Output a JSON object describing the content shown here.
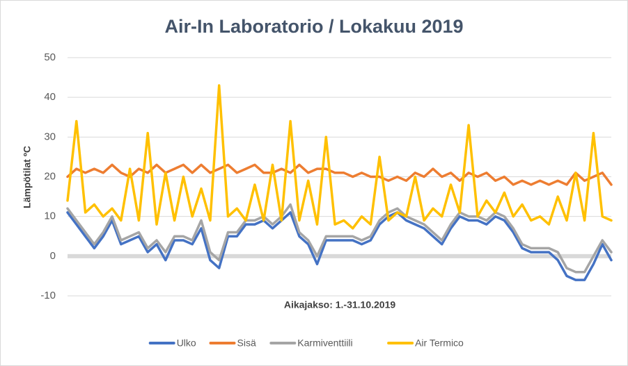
{
  "chart_data": {
    "type": "line",
    "title": "Air-In Laboratorio / Lokakuu 2019",
    "x_label": "Aikajakso: 1.-31.10.2019",
    "y_label": "Lämpötilat ºC",
    "ylim": [
      -10,
      50
    ],
    "yticks": [
      -10,
      0,
      10,
      20,
      30,
      40,
      50
    ],
    "grid": true,
    "legend": "bottom",
    "series": [
      {
        "name": "Ulko",
        "color": "#4472c4",
        "values": [
          11,
          8,
          5,
          2,
          5,
          9,
          3,
          4,
          5,
          1,
          3,
          -1,
          4,
          4,
          3,
          7,
          -1,
          -3,
          5,
          5,
          8,
          8,
          9,
          7,
          9,
          11,
          5,
          3,
          -2,
          4,
          4,
          4,
          4,
          3,
          4,
          8,
          10,
          11,
          9,
          8,
          7,
          5,
          3,
          7,
          10,
          9,
          9,
          8,
          10,
          9,
          6,
          2,
          1,
          1,
          1,
          -1,
          -5,
          -6,
          -6,
          -2,
          3,
          -1
        ]
      },
      {
        "name": "Sisä",
        "color": "#ed7d31",
        "values": [
          20,
          22,
          21,
          22,
          21,
          23,
          21,
          20,
          22,
          21,
          23,
          21,
          22,
          23,
          21,
          23,
          21,
          22,
          23,
          21,
          22,
          23,
          21,
          21,
          22,
          21,
          23,
          21,
          22,
          22,
          21,
          21,
          20,
          21,
          20,
          20,
          19,
          20,
          19,
          21,
          20,
          22,
          20,
          21,
          19,
          21,
          20,
          21,
          19,
          20,
          18,
          19,
          18,
          19,
          18,
          19,
          18,
          21,
          19,
          20,
          21,
          18
        ]
      },
      {
        "name": "Karmiventtiili",
        "color": "#a5a5a5",
        "values": [
          12,
          9,
          6,
          3,
          6,
          10,
          4,
          5,
          6,
          2,
          4,
          1,
          5,
          5,
          4,
          9,
          1,
          -1,
          6,
          6,
          9,
          9,
          10,
          8,
          10,
          13,
          6,
          4,
          0,
          5,
          5,
          5,
          5,
          4,
          5,
          9,
          11,
          12,
          10,
          9,
          8,
          6,
          4,
          8,
          11,
          10,
          10,
          9,
          11,
          10,
          7,
          3,
          2,
          2,
          2,
          1,
          -3,
          -4,
          -4,
          0,
          4,
          1
        ]
      },
      {
        "name": "Air Termico",
        "color": "#ffc000",
        "values": [
          14,
          34,
          11,
          13,
          10,
          12,
          9,
          22,
          9,
          31,
          8,
          21,
          9,
          20,
          10,
          17,
          9,
          43,
          10,
          12,
          9,
          18,
          9,
          23,
          9,
          34,
          9,
          19,
          8,
          30,
          8,
          9,
          7,
          10,
          8,
          25,
          9,
          11,
          10,
          20,
          9,
          12,
          10,
          18,
          11,
          33,
          10,
          14,
          11,
          16,
          10,
          13,
          9,
          10,
          8,
          15,
          9,
          21,
          9,
          31,
          10,
          9
        ]
      }
    ]
  }
}
